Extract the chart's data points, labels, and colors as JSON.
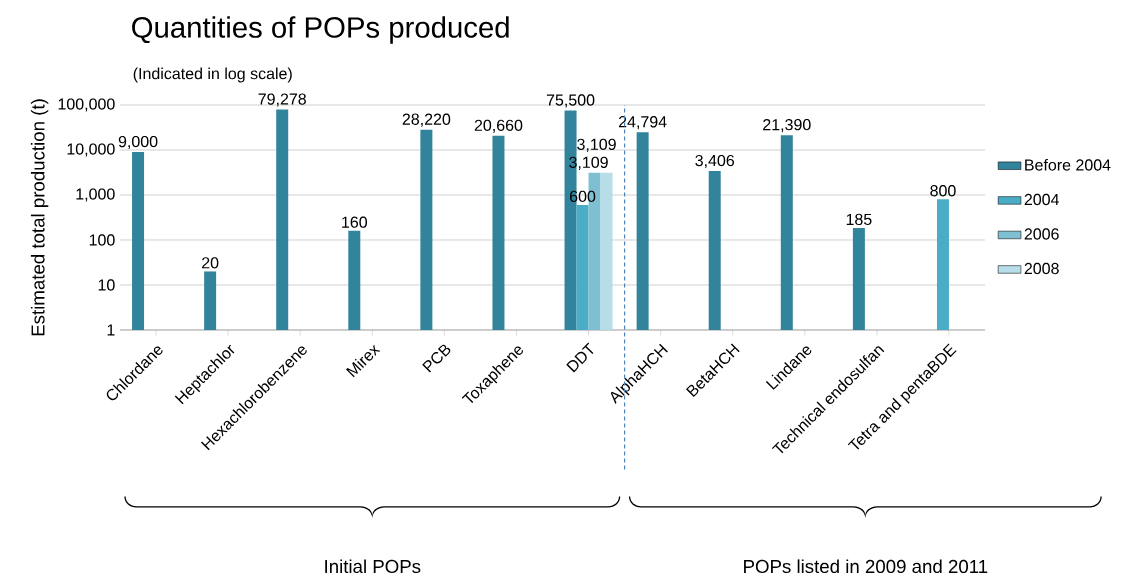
{
  "chart_data": {
    "type": "bar",
    "title": "Quantities of POPs produced",
    "subtitle": "(Indicated in log scale)",
    "ylabel": "Estimated total production (t)",
    "categories": [
      "Chlordane",
      "Heptachlor",
      "Hexachlorobenzene",
      "Mirex",
      "PCB",
      "Toxaphene",
      "DDT",
      "AlphaHCH",
      "BetaHCH",
      "Lindane",
      "Technical endosulfan",
      "Tetra and pentaBDE"
    ],
    "series": [
      {
        "name": "Before 2004",
        "color": "#31849b",
        "values": [
          9000,
          20,
          79278,
          160,
          28220,
          20660,
          75500,
          24794,
          3406,
          21390,
          185,
          null
        ],
        "value_labels": [
          "9,000",
          "20",
          "79,278",
          "160",
          "28,220",
          "20,660",
          "75,500",
          "24,794",
          "3,406",
          "21,390",
          "185",
          null
        ]
      },
      {
        "name": "2004",
        "color": "#4bacc6",
        "values": [
          null,
          null,
          null,
          null,
          null,
          null,
          600,
          null,
          null,
          null,
          null,
          800
        ],
        "value_labels": [
          null,
          null,
          null,
          null,
          null,
          null,
          "600",
          null,
          null,
          null,
          null,
          "800"
        ]
      },
      {
        "name": "2006",
        "color": "#7fbfd2",
        "values": [
          null,
          null,
          null,
          null,
          null,
          null,
          3109,
          null,
          null,
          null,
          null,
          null
        ],
        "value_labels": [
          null,
          null,
          null,
          null,
          null,
          null,
          "3,109",
          null,
          null,
          null,
          null,
          null
        ]
      },
      {
        "name": "2008",
        "color": "#b7dee8",
        "values": [
          null,
          null,
          null,
          null,
          null,
          null,
          3109,
          null,
          null,
          null,
          null,
          null
        ],
        "value_labels": [
          null,
          null,
          null,
          null,
          null,
          null,
          "3,109",
          null,
          null,
          null,
          null,
          null
        ]
      }
    ],
    "log": "y",
    "ylim": [
      1,
      100000
    ],
    "yticks": [
      1,
      10,
      100,
      {
        "value": 1000,
        "label": "1,000"
      },
      {
        "value": 10000,
        "label": "10,000"
      },
      {
        "value": 100000,
        "label": "100,000"
      }
    ],
    "grid": "y",
    "legend": "right",
    "annotations": [
      "Initial POPs",
      "POPs listed in 2009 and 2011"
    ]
  }
}
